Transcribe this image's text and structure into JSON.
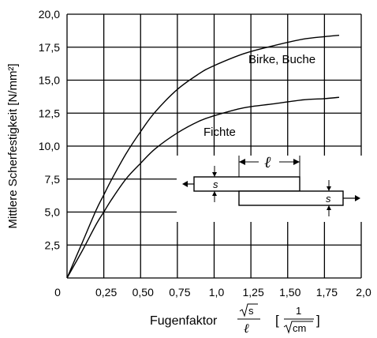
{
  "chart_data": {
    "type": "line",
    "title": "",
    "xlabel": "Fugenfaktor",
    "xlabel_formula": "√s / ℓ",
    "xlabel_unit": "[ 1 / √cm ]",
    "ylabel": "Mittlere Scherfestigkeit [N/mm²]",
    "xlim": [
      0,
      2.0
    ],
    "ylim": [
      0,
      20.0
    ],
    "x_ticks": [
      "0",
      "0,25",
      "0,50",
      "0,75",
      "1,0",
      "1,25",
      "1,50",
      "1,75",
      "2,0"
    ],
    "y_ticks": [
      "2,5",
      "5,0",
      "7,5",
      "10,0",
      "12,5",
      "15,0",
      "17,5",
      "20,0"
    ],
    "grid": true,
    "series": [
      {
        "name": "Birke, Buche",
        "x": [
          0,
          0.1,
          0.2,
          0.25,
          0.3,
          0.4,
          0.5,
          0.6,
          0.75,
          0.9,
          1.0,
          1.2,
          1.4,
          1.6,
          1.75,
          1.85
        ],
        "y": [
          0,
          2.6,
          5.2,
          6.3,
          7.4,
          9.4,
          11.1,
          12.6,
          14.3,
          15.5,
          16.1,
          17.0,
          17.6,
          18.1,
          18.3,
          18.4
        ]
      },
      {
        "name": "Fichte",
        "x": [
          0,
          0.1,
          0.2,
          0.25,
          0.3,
          0.4,
          0.5,
          0.6,
          0.75,
          0.9,
          1.0,
          1.2,
          1.4,
          1.6,
          1.75,
          1.85
        ],
        "y": [
          0,
          2.0,
          4.1,
          5.0,
          5.9,
          7.5,
          8.7,
          9.8,
          11.0,
          11.9,
          12.3,
          12.9,
          13.2,
          13.5,
          13.6,
          13.7
        ]
      }
    ],
    "annotations": {
      "birke": "Birke, Buche",
      "fichte": "Fichte"
    },
    "inset": {
      "length_label": "ℓ",
      "thickness_label_top": "s",
      "thickness_label_bottom": "s"
    }
  }
}
